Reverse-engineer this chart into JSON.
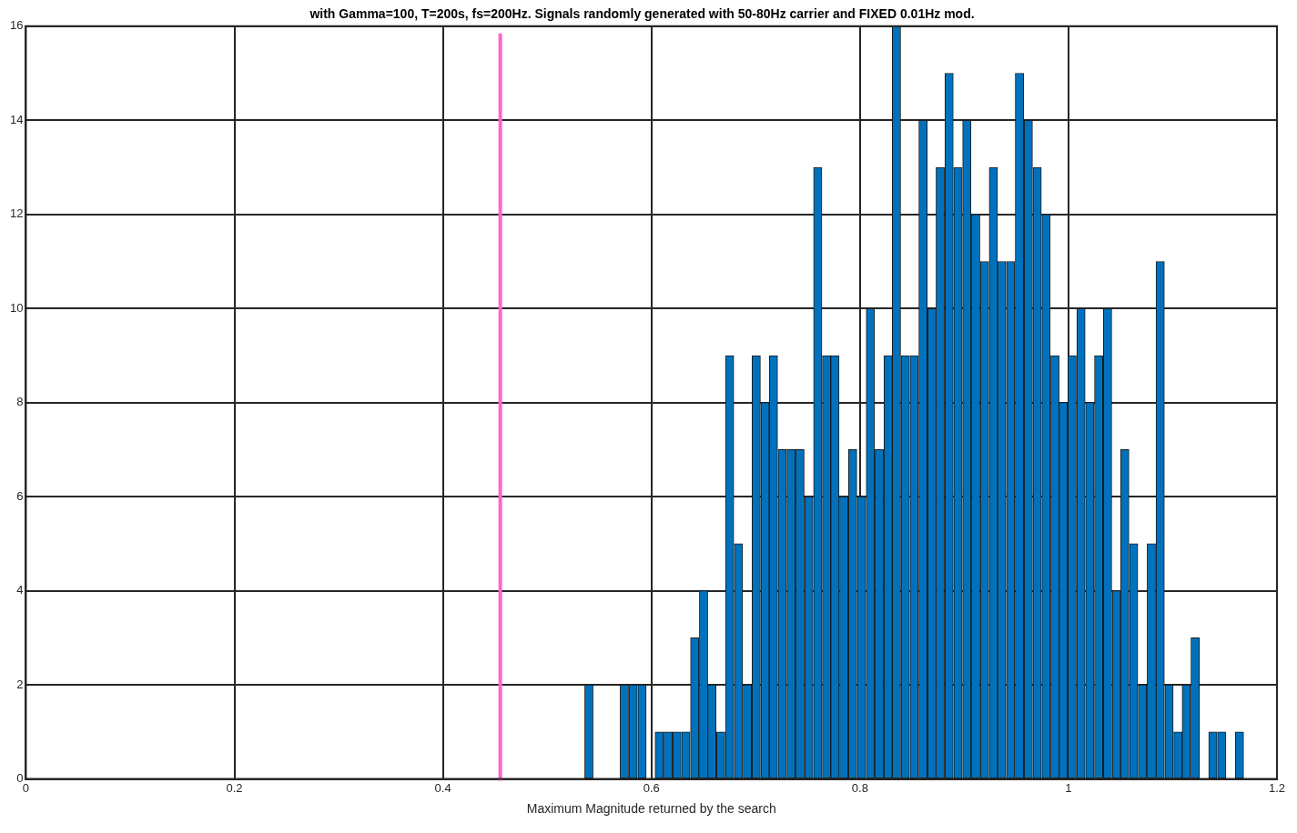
{
  "chart_data": {
    "type": "histogram",
    "title": "with Gamma=100, T=200s, fs=200Hz. Signals randomly generated with 50-80Hz carrier and FIXED 0.01Hz mod.",
    "xlabel": "Maximum Magnitude returned by the search",
    "bins": [
      0.536,
      0.544,
      0.553,
      0.561,
      0.57,
      0.578,
      0.587,
      0.595,
      0.603,
      0.612,
      0.62,
      0.629,
      0.637,
      0.646,
      0.654,
      0.662,
      0.671,
      0.679,
      0.688,
      0.696,
      0.705,
      0.713,
      0.721,
      0.73,
      0.738,
      0.747,
      0.755,
      0.764,
      0.772,
      0.78,
      0.789,
      0.797,
      0.806,
      0.814,
      0.823,
      0.831,
      0.839,
      0.848,
      0.856,
      0.865,
      0.873,
      0.881,
      0.89,
      0.898,
      0.907,
      0.915,
      0.924,
      0.932,
      0.94,
      0.949,
      0.957,
      0.966,
      0.974,
      0.983,
      0.991,
      0.999,
      1.008,
      1.016,
      1.025,
      1.033,
      1.042,
      1.05,
      1.058,
      1.067,
      1.075,
      1.084,
      1.092,
      1.101,
      1.109,
      1.117,
      1.126,
      1.134,
      1.143,
      1.151,
      1.16,
      1.168
    ],
    "values": [
      2,
      0,
      0,
      0,
      2,
      2,
      2,
      0,
      1,
      1,
      1,
      1,
      3,
      4,
      2,
      1,
      9,
      5,
      2,
      9,
      8,
      9,
      7,
      7,
      7,
      6,
      13,
      9,
      9,
      6,
      7,
      6,
      10,
      7,
      9,
      16,
      9,
      9,
      14,
      10,
      13,
      15,
      13,
      14,
      12,
      11,
      13,
      11,
      11,
      15,
      14,
      13,
      12,
      9,
      8,
      9,
      10,
      8,
      9,
      10,
      4,
      7,
      5,
      2,
      5,
      11,
      2,
      1,
      2,
      3,
      0,
      1,
      1,
      0,
      1
    ],
    "color": "#0072bd",
    "xlim": [
      0,
      1.2
    ],
    "xticks": [
      0,
      0.2,
      0.4,
      0.6,
      0.8,
      1,
      1.2
    ],
    "ylim": [
      0,
      16
    ],
    "yticks": [
      0,
      2,
      4,
      6,
      8,
      10,
      12,
      14,
      16
    ],
    "grid": true,
    "ref_lines": [
      {
        "axis": "x",
        "value": 0.455,
        "color": "#ff66cc"
      }
    ]
  }
}
